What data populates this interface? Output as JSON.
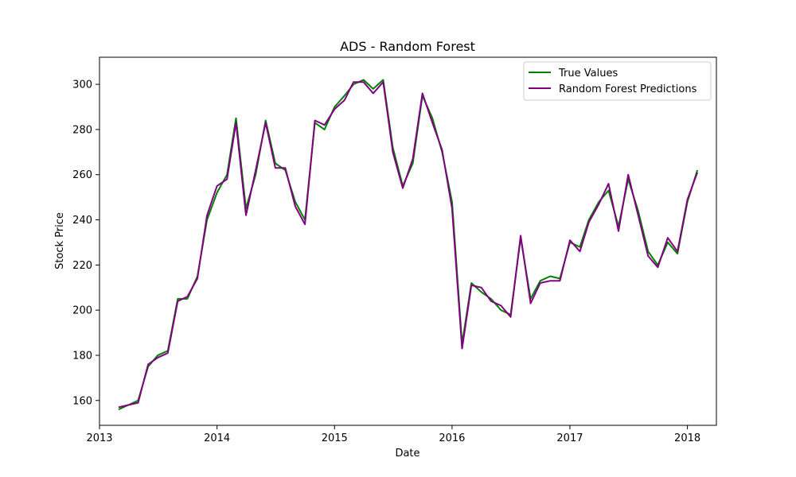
{
  "chart_data": {
    "type": "line",
    "title": "ADS - Random Forest",
    "xlabel": "Date",
    "ylabel": "Stock Price",
    "xlim": [
      "2013-01-01",
      "2018-04-01"
    ],
    "ylim": [
      149,
      312
    ],
    "x_ticks": [
      "2013",
      "2014",
      "2015",
      "2016",
      "2017",
      "2018"
    ],
    "y_ticks": [
      160,
      180,
      200,
      220,
      240,
      260,
      280,
      300
    ],
    "grid": false,
    "legend_position": "top-right",
    "x": [
      "2013-03-01",
      "2013-04-01",
      "2013-05-01",
      "2013-06-01",
      "2013-07-01",
      "2013-08-01",
      "2013-09-01",
      "2013-10-01",
      "2013-11-01",
      "2013-12-01",
      "2014-01-01",
      "2014-02-01",
      "2014-03-01",
      "2014-04-01",
      "2014-05-01",
      "2014-06-01",
      "2014-07-01",
      "2014-08-01",
      "2014-09-01",
      "2014-10-01",
      "2014-11-01",
      "2014-12-01",
      "2015-01-01",
      "2015-02-01",
      "2015-03-01",
      "2015-04-01",
      "2015-05-01",
      "2015-06-01",
      "2015-07-01",
      "2015-08-01",
      "2015-09-01",
      "2015-10-01",
      "2015-11-01",
      "2015-12-01",
      "2016-01-01",
      "2016-02-01",
      "2016-03-01",
      "2016-04-01",
      "2016-05-01",
      "2016-06-01",
      "2016-07-01",
      "2016-08-01",
      "2016-09-01",
      "2016-10-01",
      "2016-11-01",
      "2016-12-01",
      "2017-01-01",
      "2017-02-01",
      "2017-03-01",
      "2017-04-01",
      "2017-05-01",
      "2017-06-01",
      "2017-07-01",
      "2017-08-01",
      "2017-09-01",
      "2017-10-01",
      "2017-11-01",
      "2017-12-01",
      "2018-01-01",
      "2018-02-01"
    ],
    "series": [
      {
        "name": "True Values",
        "color": "#008000",
        "values": [
          156,
          158,
          160,
          175,
          180,
          182,
          205,
          205,
          215,
          240,
          252,
          260,
          285,
          245,
          260,
          284,
          265,
          262,
          248,
          240,
          283,
          280,
          290,
          295,
          300,
          302,
          298,
          302,
          272,
          255,
          265,
          295,
          285,
          270,
          248,
          185,
          212,
          208,
          205,
          200,
          198,
          232,
          205,
          213,
          215,
          214,
          230,
          228,
          240,
          248,
          253,
          237,
          258,
          244,
          226,
          220,
          230,
          225,
          248,
          262
        ]
      },
      {
        "name": "Random Forest Predictions",
        "color": "#800080",
        "values": [
          157,
          158,
          159,
          176,
          179,
          181,
          204,
          206,
          214,
          242,
          255,
          258,
          283,
          242,
          262,
          283,
          263,
          263,
          246,
          238,
          284,
          282,
          289,
          293,
          301,
          301,
          296,
          301,
          270,
          254,
          267,
          296,
          283,
          271,
          245,
          183,
          211,
          210,
          204,
          202,
          197,
          233,
          203,
          212,
          213,
          213,
          231,
          226,
          239,
          247,
          256,
          235,
          260,
          242,
          224,
          219,
          232,
          226,
          249,
          261
        ]
      }
    ]
  }
}
